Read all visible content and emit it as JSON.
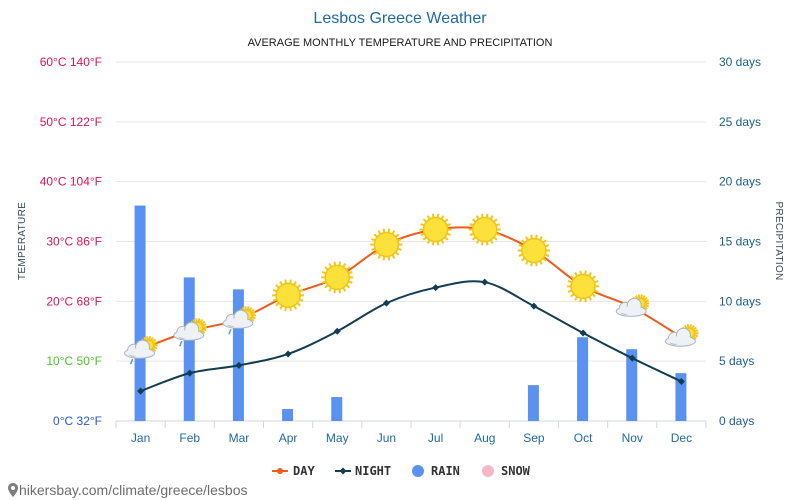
{
  "header": {
    "title": "Lesbos Greece Weather",
    "subtitle": "AVERAGE MONTHLY TEMPERATURE AND PRECIPITATION"
  },
  "footer": {
    "source": "hikersbay.com/climate/greece/lesbos"
  },
  "legend": {
    "day": "DAY",
    "night": "NIGHT",
    "rain": "RAIN",
    "snow": "SNOW"
  },
  "colors": {
    "day": "#f05a1a",
    "night": "#123d52",
    "rain": "#5b92f2",
    "snow": "#f5b8c8",
    "grid": "#e6e6e6",
    "temp_ticks": [
      "#2a58d6",
      "#4cc32c",
      "#e0125a",
      "#e0125a",
      "#e0125a",
      "#e0125a",
      "#e0125a"
    ],
    "right_ticks": "#1a5f8a"
  },
  "chart_data": {
    "type": "line",
    "categories": [
      "Jan",
      "Feb",
      "Mar",
      "Apr",
      "May",
      "Jun",
      "Jul",
      "Aug",
      "Sep",
      "Oct",
      "Nov",
      "Dec"
    ],
    "series": [
      {
        "name": "DAY",
        "axis": "temperature",
        "values": [
          12,
          15,
          17,
          21,
          24,
          29.5,
          32,
          32,
          28.5,
          22.5,
          19,
          14
        ]
      },
      {
        "name": "NIGHT",
        "axis": "temperature",
        "values": [
          5,
          8,
          9.3,
          11.2,
          15,
          19.7,
          22.3,
          23.2,
          19.2,
          14.7,
          10.5,
          6.6
        ]
      },
      {
        "name": "RAIN",
        "axis": "precipitation",
        "type": "bar",
        "values": [
          18,
          12,
          11,
          1,
          2,
          0,
          0,
          0,
          3,
          7,
          6,
          4
        ]
      },
      {
        "name": "SNOW",
        "axis": "precipitation",
        "type": "bar",
        "values": [
          0,
          0,
          0,
          0,
          0,
          0,
          0,
          0,
          0,
          0,
          0,
          0
        ]
      }
    ],
    "weather_icons": [
      "cloud-sun-rain-icon",
      "cloud-sun-rain-icon",
      "cloud-sun-rain-icon",
      "sun-icon",
      "sun-icon",
      "sun-icon",
      "sun-icon",
      "sun-icon",
      "sun-icon",
      "sun-icon",
      "cloud-sun-icon",
      "cloud-sun-icon"
    ],
    "left_axis": {
      "title": "TEMPERATURE",
      "range": [
        0,
        60
      ],
      "ticks": [
        0,
        10,
        20,
        30,
        40,
        50,
        60
      ],
      "tick_labels": [
        "0°C 32°F",
        "10°C 50°F",
        "20°C 68°F",
        "30°C 86°F",
        "40°C 104°F",
        "50°C 122°F",
        "60°C 140°F"
      ]
    },
    "right_axis": {
      "title": "PRECIPITATION",
      "range": [
        0,
        30
      ],
      "ticks": [
        0,
        5,
        10,
        15,
        20,
        25,
        30
      ],
      "tick_labels": [
        "0 days",
        "5 days",
        "10 days",
        "15 days",
        "20 days",
        "25 days",
        "30 days"
      ]
    },
    "grid": true,
    "legend_position": "bottom-center"
  }
}
